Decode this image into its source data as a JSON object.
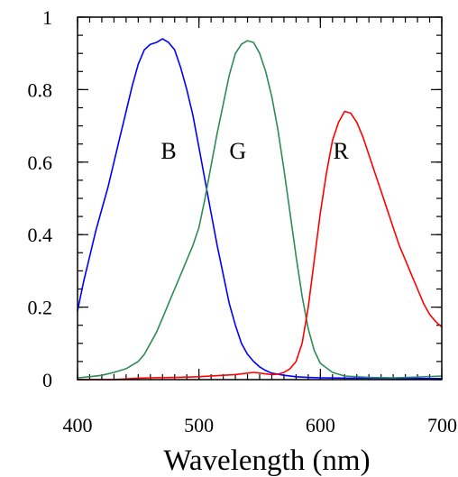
{
  "chart_data": {
    "type": "line",
    "title": "",
    "xlabel": "Wavelength (nm)",
    "ylabel": "",
    "xlim": [
      400,
      700
    ],
    "ylim": [
      0,
      1
    ],
    "x_ticks": [
      "400",
      "500",
      "600",
      "700"
    ],
    "y_ticks": [
      "0",
      "0.2",
      "0.4",
      "0.6",
      "0.8",
      "1"
    ],
    "x_minor_step": 10,
    "y_minor_step": 0.05,
    "grid": false,
    "legend": "none",
    "series": [
      {
        "name": "B",
        "color": "#0000ff",
        "label_at": [
          475,
          0.61
        ],
        "points": [
          [
            400,
            0.19
          ],
          [
            405,
            0.27
          ],
          [
            410,
            0.34
          ],
          [
            415,
            0.41
          ],
          [
            420,
            0.47
          ],
          [
            425,
            0.53
          ],
          [
            430,
            0.6
          ],
          [
            435,
            0.67
          ],
          [
            440,
            0.74
          ],
          [
            445,
            0.81
          ],
          [
            450,
            0.87
          ],
          [
            455,
            0.91
          ],
          [
            460,
            0.925
          ],
          [
            465,
            0.93
          ],
          [
            470,
            0.94
          ],
          [
            475,
            0.93
          ],
          [
            480,
            0.91
          ],
          [
            485,
            0.86
          ],
          [
            490,
            0.8
          ],
          [
            495,
            0.73
          ],
          [
            500,
            0.64
          ],
          [
            505,
            0.55
          ],
          [
            510,
            0.46
          ],
          [
            515,
            0.37
          ],
          [
            520,
            0.29
          ],
          [
            525,
            0.21
          ],
          [
            530,
            0.15
          ],
          [
            535,
            0.1
          ],
          [
            540,
            0.07
          ],
          [
            545,
            0.05
          ],
          [
            550,
            0.035
          ],
          [
            555,
            0.025
          ],
          [
            560,
            0.018
          ],
          [
            570,
            0.012
          ],
          [
            580,
            0.008
          ],
          [
            590,
            0.006
          ],
          [
            600,
            0.005
          ],
          [
            625,
            0.004
          ],
          [
            650,
            0.004
          ],
          [
            675,
            0.003
          ],
          [
            700,
            0.003
          ]
        ]
      },
      {
        "name": "G",
        "color": "#2e8b57",
        "label_at": [
          532,
          0.61
        ],
        "points": [
          [
            400,
            0.005
          ],
          [
            410,
            0.008
          ],
          [
            420,
            0.012
          ],
          [
            430,
            0.02
          ],
          [
            440,
            0.03
          ],
          [
            450,
            0.05
          ],
          [
            455,
            0.07
          ],
          [
            460,
            0.1
          ],
          [
            465,
            0.13
          ],
          [
            470,
            0.17
          ],
          [
            475,
            0.21
          ],
          [
            480,
            0.25
          ],
          [
            485,
            0.29
          ],
          [
            490,
            0.33
          ],
          [
            495,
            0.37
          ],
          [
            500,
            0.42
          ],
          [
            505,
            0.5
          ],
          [
            510,
            0.59
          ],
          [
            515,
            0.68
          ],
          [
            520,
            0.76
          ],
          [
            525,
            0.84
          ],
          [
            530,
            0.9
          ],
          [
            535,
            0.925
          ],
          [
            540,
            0.935
          ],
          [
            545,
            0.93
          ],
          [
            550,
            0.9
          ],
          [
            555,
            0.85
          ],
          [
            560,
            0.78
          ],
          [
            565,
            0.69
          ],
          [
            570,
            0.58
          ],
          [
            575,
            0.46
          ],
          [
            580,
            0.34
          ],
          [
            585,
            0.23
          ],
          [
            590,
            0.14
          ],
          [
            595,
            0.08
          ],
          [
            600,
            0.045
          ],
          [
            610,
            0.02
          ],
          [
            620,
            0.01
          ],
          [
            640,
            0.006
          ],
          [
            660,
            0.005
          ],
          [
            680,
            0.007
          ],
          [
            700,
            0.01
          ]
        ]
      },
      {
        "name": "R",
        "color": "#ff0000",
        "label_at": [
          617,
          0.61
        ],
        "points": [
          [
            400,
            0.0
          ],
          [
            430,
            0.0
          ],
          [
            440,
            0.002
          ],
          [
            450,
            0.004
          ],
          [
            460,
            0.005
          ],
          [
            480,
            0.006
          ],
          [
            500,
            0.008
          ],
          [
            520,
            0.012
          ],
          [
            530,
            0.014
          ],
          [
            540,
            0.018
          ],
          [
            545,
            0.02
          ],
          [
            550,
            0.018
          ],
          [
            560,
            0.014
          ],
          [
            565,
            0.015
          ],
          [
            570,
            0.02
          ],
          [
            575,
            0.03
          ],
          [
            580,
            0.05
          ],
          [
            585,
            0.1
          ],
          [
            590,
            0.2
          ],
          [
            595,
            0.33
          ],
          [
            600,
            0.46
          ],
          [
            605,
            0.57
          ],
          [
            610,
            0.66
          ],
          [
            615,
            0.71
          ],
          [
            620,
            0.74
          ],
          [
            625,
            0.735
          ],
          [
            630,
            0.71
          ],
          [
            635,
            0.67
          ],
          [
            640,
            0.62
          ],
          [
            645,
            0.57
          ],
          [
            650,
            0.52
          ],
          [
            655,
            0.47
          ],
          [
            660,
            0.42
          ],
          [
            665,
            0.37
          ],
          [
            670,
            0.33
          ],
          [
            675,
            0.29
          ],
          [
            680,
            0.25
          ],
          [
            685,
            0.21
          ],
          [
            690,
            0.18
          ],
          [
            695,
            0.16
          ],
          [
            700,
            0.145
          ]
        ]
      }
    ]
  }
}
